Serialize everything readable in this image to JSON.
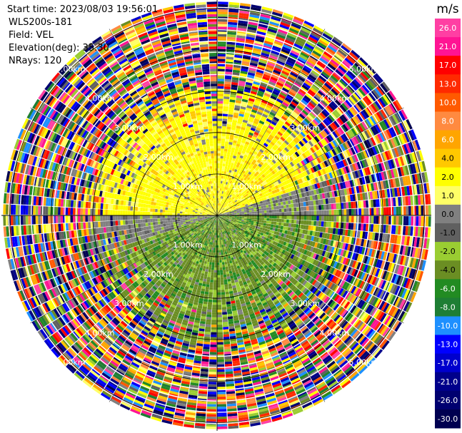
{
  "header": {
    "start_time": "Start time: 2023/08/03 19:56:01",
    "station": "WLS200s-181",
    "field": "Field: VEL",
    "elevation": "Elevation(deg): 35.30",
    "nrays": "NRays: 120"
  },
  "colorbar": {
    "unit": "m/s",
    "ticks": [
      "26.0",
      "21.0",
      "17.0",
      "13.0",
      "10.0",
      "8.0",
      "6.0",
      "4.0",
      "2.0",
      "1.0",
      "0.0",
      "-1.0",
      "-2.0",
      "-4.0",
      "-6.0",
      "-8.0",
      "-10.0",
      "-13.0",
      "-17.0",
      "-21.0",
      "-26.0",
      "-30.0"
    ],
    "colors": [
      "#ff3fa3",
      "#ff1493",
      "#ff0000",
      "#ff2a00",
      "#ff5a00",
      "#ff8a40",
      "#ffa500",
      "#ffc800",
      "#ffff00",
      "#ffff66",
      "#808080",
      "#606060",
      "#9acd32",
      "#6b8e23",
      "#228b22",
      "#1e7e34",
      "#1e90ff",
      "#0000ff",
      "#0000cd",
      "#00008b",
      "#000070",
      "#000050"
    ]
  },
  "chart_data": {
    "type": "heatmap",
    "title": "",
    "nrays": 120,
    "elevation_deg": 35.3,
    "range_rings_km": [
      "1.00km",
      "2.00km",
      "3.00km",
      "4.00km",
      "5.00km"
    ],
    "max_range_km": 5.2,
    "unit": "m/s",
    "vmin": -30.0,
    "vmax": 26.0,
    "grid": true
  }
}
